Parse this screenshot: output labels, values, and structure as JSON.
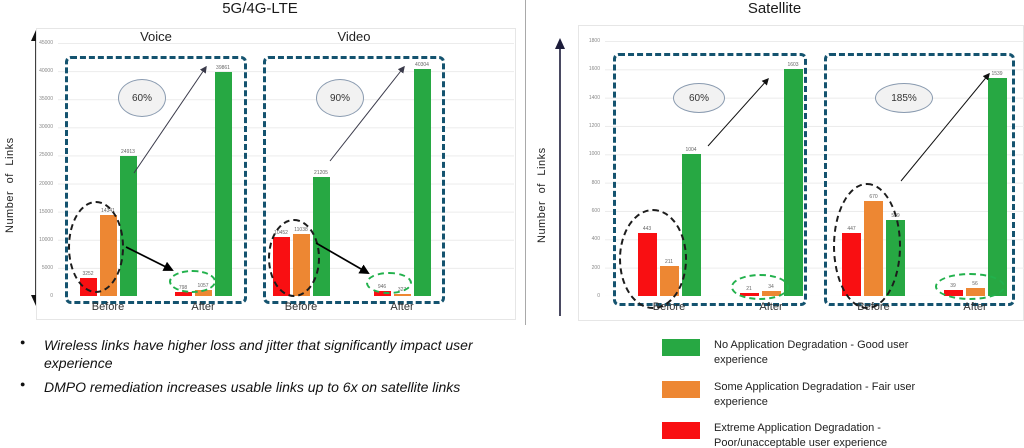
{
  "colors": {
    "green": "#27a843",
    "orange": "#ed8733",
    "red": "#f90f12",
    "dash_blue": "#14536f",
    "ellipse_green": "#22b14c",
    "oval_fill": "#f2f2f2"
  },
  "chart_data": [
    {
      "type": "bar",
      "title": "5G/4G-LTE",
      "ylabel": "Number of Links",
      "ylim": [
        0,
        45000
      ],
      "yticks": [
        45000,
        40000,
        35000,
        30000,
        25000,
        20000,
        15000,
        10000,
        5000,
        0
      ],
      "grid": true,
      "subcharts": [
        {
          "name": "Voice",
          "growth_label": "60%",
          "categories": [
            "Before",
            "After"
          ],
          "series": [
            {
              "name": "Extreme Application Degradation",
              "color": "red",
              "values": [
                3252,
                798
              ]
            },
            {
              "name": "Some Application Degradation",
              "color": "orange",
              "values": [
                14341,
                1057
              ]
            },
            {
              "name": "No Application Degradation",
              "color": "green",
              "values": [
                24913,
                39861
              ]
            }
          ]
        },
        {
          "name": "Video",
          "growth_label": "90%",
          "categories": [
            "Before",
            "After"
          ],
          "series": [
            {
              "name": "Extreme Application Degradation",
              "color": "red",
              "values": [
                10452,
                946
              ]
            },
            {
              "name": "Some Application Degradation",
              "color": "orange",
              "values": [
                11038,
                327
              ]
            },
            {
              "name": "No Application Degradation",
              "color": "green",
              "values": [
                21205,
                40304
              ]
            }
          ]
        }
      ]
    },
    {
      "type": "bar",
      "title": "Satellite",
      "ylabel": "Number of Links",
      "ylim": [
        0,
        1800
      ],
      "yticks": [
        1800,
        1600,
        1400,
        1200,
        1000,
        800,
        600,
        400,
        200,
        0
      ],
      "grid": true,
      "subcharts": [
        {
          "name": "",
          "growth_label": "60%",
          "categories": [
            "Before",
            "After"
          ],
          "series": [
            {
              "name": "Extreme Application Degradation",
              "color": "red",
              "values": [
                443,
                21
              ]
            },
            {
              "name": "Some Application Degradation",
              "color": "orange",
              "values": [
                211,
                34
              ]
            },
            {
              "name": "No Application Degradation",
              "color": "green",
              "values": [
                1004,
                1603
              ]
            }
          ]
        },
        {
          "name": "",
          "growth_label": "185%",
          "categories": [
            "Before",
            "After"
          ],
          "series": [
            {
              "name": "Extreme Application Degradation",
              "color": "red",
              "values": [
                447,
                39
              ]
            },
            {
              "name": "Some Application Degradation",
              "color": "orange",
              "values": [
                670,
                56
              ]
            },
            {
              "name": "No Application Degradation",
              "color": "green",
              "values": [
                539,
                1539
              ]
            }
          ]
        }
      ]
    }
  ],
  "ui": {
    "bullets": [
      "Wireless links have higher loss and jitter that significantly impact user experience",
      "DMPO remediation increases usable links up to 6x on satellite links"
    ],
    "legend": [
      {
        "color": "green",
        "label": "No Application Degradation  - Good user experience"
      },
      {
        "color": "orange",
        "label": "Some  Application Degradation  - Fair user experience"
      },
      {
        "color": "red",
        "label": "Extreme Application Degradation - Poor/unacceptable user experience"
      }
    ]
  }
}
